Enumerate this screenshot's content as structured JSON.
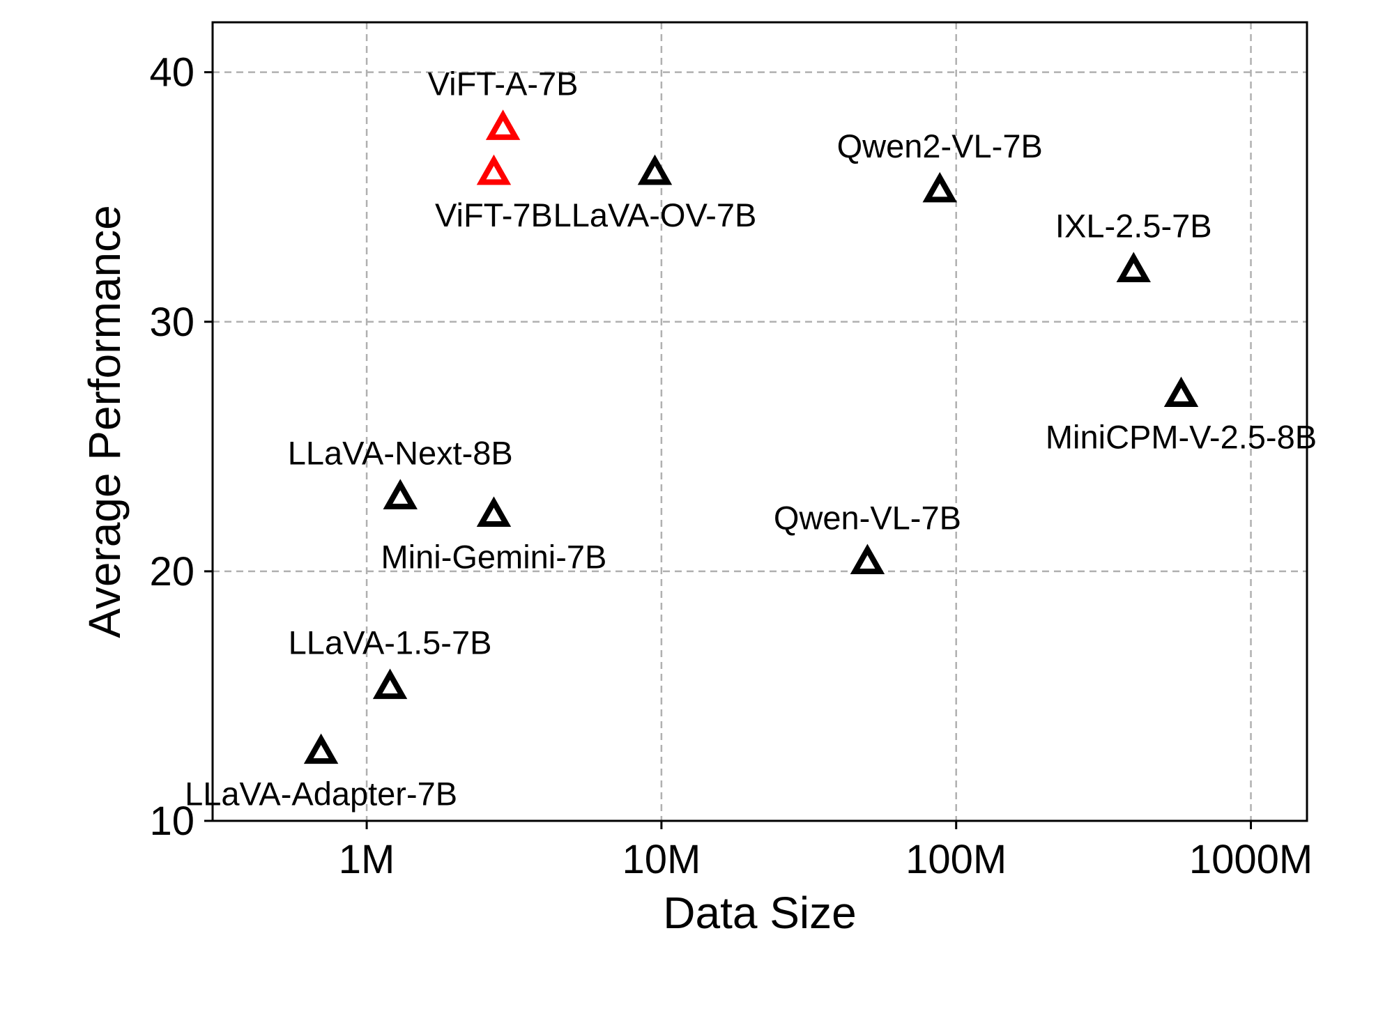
{
  "chart_data": {
    "type": "scatter",
    "xlabel": "Data Size",
    "ylabel": "Average Performance",
    "x_scale": "log",
    "xlim": [
      300000,
      1550000000
    ],
    "ylim": [
      10,
      42
    ],
    "x_ticks": [
      {
        "value": 1000000,
        "label": "1M"
      },
      {
        "value": 10000000,
        "label": "10M"
      },
      {
        "value": 100000000,
        "label": "100M"
      },
      {
        "value": 1000000000,
        "label": "1000M"
      }
    ],
    "y_ticks": [
      {
        "value": 10,
        "label": "10"
      },
      {
        "value": 20,
        "label": "20"
      },
      {
        "value": 30,
        "label": "30"
      },
      {
        "value": 40,
        "label": "40"
      }
    ],
    "grid": true,
    "marker": "triangle-open",
    "colors": {
      "highlight": "#ff0000",
      "default": "#000000"
    },
    "points": [
      {
        "label": "ViFT-A-7B",
        "x": 2900000,
        "y": 37.8,
        "highlight": true,
        "label_pos": "above"
      },
      {
        "label": "ViFT-7B",
        "x": 2700000,
        "y": 36.0,
        "highlight": true,
        "label_pos": "below"
      },
      {
        "label": "LLaVA-OV-7B",
        "x": 9500000,
        "y": 36.0,
        "highlight": false,
        "label_pos": "below"
      },
      {
        "label": "Qwen2-VL-7B",
        "x": 88000000,
        "y": 35.3,
        "highlight": false,
        "label_pos": "above"
      },
      {
        "label": "IXL-2.5-7B",
        "x": 400000000,
        "y": 32.1,
        "highlight": false,
        "label_pos": "above"
      },
      {
        "label": "MiniCPM-V-2.5-8B",
        "x": 580000000,
        "y": 27.1,
        "highlight": false,
        "label_pos": "below"
      },
      {
        "label": "LLaVA-Next-8B",
        "x": 1300000,
        "y": 23.0,
        "highlight": false,
        "label_pos": "above"
      },
      {
        "label": "Mini-Gemini-7B",
        "x": 2700000,
        "y": 22.3,
        "highlight": false,
        "label_pos": "below"
      },
      {
        "label": "Qwen-VL-7B",
        "x": 50000000,
        "y": 20.4,
        "highlight": false,
        "label_pos": "above"
      },
      {
        "label": "LLaVA-1.5-7B",
        "x": 1200000,
        "y": 15.4,
        "highlight": false,
        "label_pos": "above"
      },
      {
        "label": "LLaVA-Adapter-7B",
        "x": 700000,
        "y": 12.8,
        "highlight": false,
        "label_pos": "below"
      }
    ]
  }
}
